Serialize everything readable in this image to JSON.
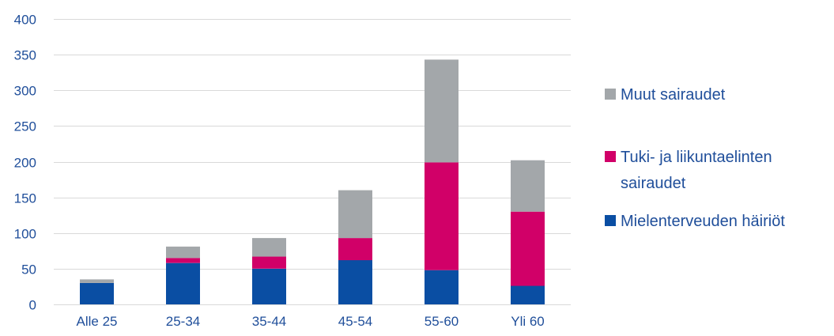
{
  "chart_data": {
    "type": "bar",
    "stacked": true,
    "categories": [
      "Alle 25",
      "25-34",
      "35-44",
      "45-54",
      "55-60",
      "Yli 60"
    ],
    "series": [
      {
        "name": "Mielenterveuden häiriöt",
        "color": "#0a4ea3",
        "values": [
          30,
          58,
          50,
          62,
          48,
          26
        ]
      },
      {
        "name": "Tuki- ja liikuntaelinten sairaudet",
        "color": "#d10068",
        "values": [
          0,
          7,
          17,
          31,
          151,
          104
        ]
      },
      {
        "name": "Muut sairaudet",
        "color": "#a3a7aa",
        "values": [
          5,
          16,
          26,
          67,
          144,
          72
        ]
      }
    ],
    "legend_order": [
      2,
      1,
      0
    ],
    "legend_placement": "right",
    "ylim": [
      0,
      400
    ],
    "yticks": [
      0,
      50,
      100,
      150,
      200,
      250,
      300,
      350,
      400
    ],
    "grid": true,
    "legend_lines": [
      [
        "Muut sairaudet"
      ],
      [
        "Tuki- ja liikuntaelinten",
        "sairaudet"
      ],
      [
        "Mielenterveuden häiriöt"
      ]
    ]
  }
}
